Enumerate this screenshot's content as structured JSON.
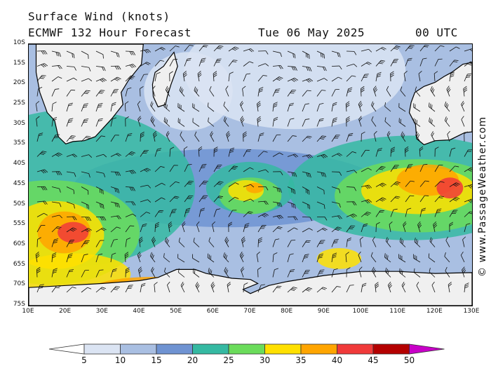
{
  "header": {
    "title_line1": "Surface Wind (knots)",
    "title_line2": "ECMWF 132 Hour Forecast",
    "date": "Tue 06 May 2025",
    "time": "00 UTC"
  },
  "credit": "© www.PassageWeather.com",
  "map": {
    "region": "South Indian Ocean",
    "lat_labels": [
      "10S",
      "15S",
      "20S",
      "25S",
      "30S",
      "35S",
      "40S",
      "45S",
      "50S",
      "55S",
      "60S",
      "65S",
      "70S",
      "75S"
    ],
    "lon_labels": [
      "10E",
      "20E",
      "30E",
      "40E",
      "50E",
      "60E",
      "70E",
      "80E",
      "90E",
      "100E",
      "110E",
      "120E",
      "130E"
    ],
    "land_color": "#f0f0f0",
    "coast_color": "#000000"
  },
  "legend": {
    "labels": [
      "5",
      "10",
      "15",
      "20",
      "25",
      "30",
      "35",
      "40",
      "45",
      "50"
    ],
    "colors": [
      "#ffffff",
      "#dbe4f3",
      "#a9bfe2",
      "#6f93d2",
      "#35b9a2",
      "#6bdc5b",
      "#ffe000",
      "#ffa500",
      "#f03a3a",
      "#b40000",
      "#c800c8"
    ]
  }
}
